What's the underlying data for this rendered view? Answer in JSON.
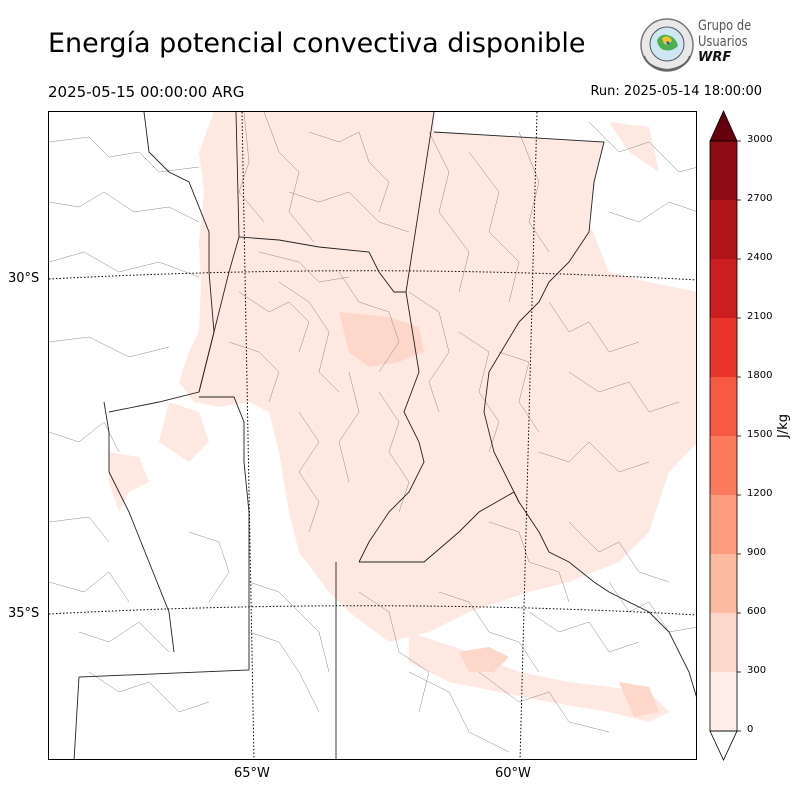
{
  "title": "Energía potencial convectiva disponible",
  "valid_time": "2025-05-15 00:00:00 ARG",
  "run_time": "Run: 2025-05-14 18:00:00",
  "logo": {
    "line1": "Grupo de",
    "line2": "Usuarios",
    "line3": "WRF"
  },
  "map": {
    "lat_labels": [
      "30°S",
      "35°S"
    ],
    "lon_labels": [
      "65°W",
      "60°W"
    ]
  },
  "colorbar": {
    "unit": "J/kg",
    "ticks": [
      "0",
      "300",
      "600",
      "900",
      "1200",
      "1500",
      "1800",
      "2100",
      "2400",
      "2700",
      "3000"
    ],
    "colors": [
      "#fff0eb",
      "#fdd7c9",
      "#fcbba1",
      "#fc9b7e",
      "#fb7b5c",
      "#f75a41",
      "#e83429",
      "#cc1d1f",
      "#b0151a",
      "#8e0b14",
      "#67000d"
    ]
  }
}
